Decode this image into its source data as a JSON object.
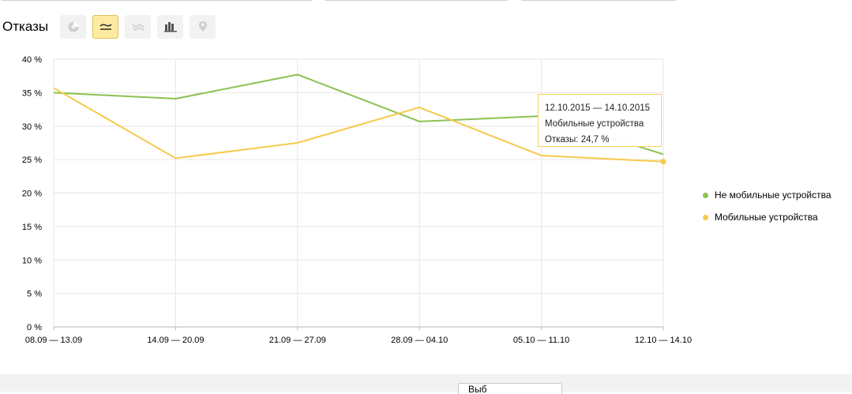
{
  "header": {
    "title": "Отказы",
    "chart_types": [
      {
        "name": "pie-chart",
        "icon": "pie-chart-icon",
        "active": false
      },
      {
        "name": "line-chart",
        "icon": "line-chart-icon",
        "active": true
      },
      {
        "name": "area-chart",
        "icon": "area-chart-icon",
        "active": false
      },
      {
        "name": "column-chart",
        "icon": "column-chart-icon",
        "active": false
      },
      {
        "name": "map",
        "icon": "map-pin-icon",
        "active": false
      }
    ]
  },
  "tooltip": {
    "period": "12.10.2015 — 14.10.2015",
    "series": "Мобильные устройства",
    "value": "Отказы: 24,7 %"
  },
  "bottom": {
    "button_label": "Выб"
  },
  "colors": {
    "green": "#8cc152",
    "yellow": "#f7c94a",
    "accent": "#ffeba0"
  },
  "chart_data": {
    "type": "line",
    "categories": [
      "08.09 — 13.09",
      "14.09 — 20.09",
      "21.09 — 27.09",
      "28.09 — 04.10",
      "05.10 — 11.10",
      "12.10 — 14.10"
    ],
    "series": [
      {
        "name": "Не мобильные устройства",
        "color": "#8cc152",
        "values": [
          35.0,
          34.1,
          37.7,
          30.7,
          31.5,
          25.8
        ]
      },
      {
        "name": "Мобильные устройства",
        "color": "#f7c94a",
        "values": [
          35.7,
          25.2,
          27.5,
          32.8,
          25.6,
          24.7
        ]
      }
    ],
    "y_ticks": [
      "0 %",
      "5 %",
      "10 %",
      "15 %",
      "20 %",
      "25 %",
      "30 %",
      "35 %",
      "40 %"
    ],
    "ylim": [
      0,
      40
    ],
    "grid": true,
    "legend_position": "right"
  }
}
